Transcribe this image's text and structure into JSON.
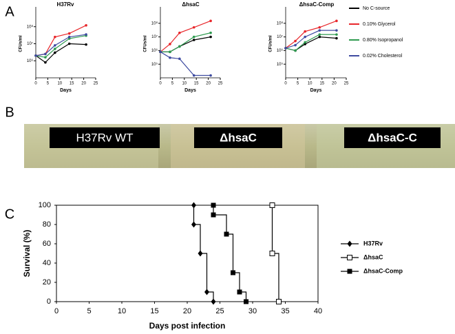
{
  "panel_labels": [
    "A",
    "B",
    "C"
  ],
  "photo": {
    "labels": [
      "H37Rv WT",
      "ΔhsaC",
      "ΔhsaC-C"
    ]
  },
  "chart_data": [
    {
      "type": "line",
      "title": "H37Rv",
      "x_label": "Days",
      "y_label": "CFUs/ml",
      "log_scale": true,
      "xlim": [
        0,
        25
      ],
      "xticks": [
        0,
        5,
        10,
        15,
        20,
        25
      ],
      "ylim": [
        100000,
        1000000000
      ],
      "yticks": [
        {
          "value": 1000000,
          "label": "10⁶"
        },
        {
          "value": 10000000,
          "label": "10⁷"
        },
        {
          "value": 100000000,
          "label": "10⁸"
        }
      ],
      "x": [
        0,
        4,
        8,
        14,
        21
      ],
      "legend": "right",
      "series": [
        {
          "name": "No C-source",
          "color": "#000000",
          "values": [
            2000000,
            800000,
            3000000,
            10000000,
            9000000
          ]
        },
        {
          "name": "0.10%  Glycerol",
          "color": "#e8262a",
          "values": [
            2000000,
            2500000,
            25000000,
            40000000,
            120000000
          ]
        },
        {
          "name": "0.80%  Isopropanol",
          "color": "#2e9a4f",
          "values": [
            2000000,
            1600000,
            5000000,
            20000000,
            30000000
          ]
        },
        {
          "name": "0.02%  Cholesterol",
          "color": "#3d4aa0",
          "values": [
            2000000,
            2500000,
            8000000,
            25000000,
            35000000
          ]
        }
      ]
    },
    {
      "type": "line",
      "title": "ΔhsaC",
      "x_label": "Days",
      "y_label": "CFUs/ml",
      "log_scale": true,
      "xlim": [
        0,
        25
      ],
      "xticks": [
        0,
        5,
        10,
        15,
        20,
        25
      ],
      "ylim": [
        10000,
        1000000000
      ],
      "yticks": [
        {
          "value": 100000,
          "label": "10⁵"
        },
        {
          "value": 1000000,
          "label": "10⁶"
        },
        {
          "value": 10000000,
          "label": "10⁷"
        },
        {
          "value": 100000000,
          "label": "10⁸"
        }
      ],
      "x": [
        0,
        4,
        8,
        14,
        21
      ],
      "series": [
        {
          "color": "#000000",
          "values": [
            800000,
            800000,
            2000000,
            6000000,
            10000000
          ]
        },
        {
          "color": "#e8262a",
          "values": [
            800000,
            3000000,
            20000000,
            50000000,
            150000000
          ]
        },
        {
          "color": "#2e9a4f",
          "values": [
            800000,
            800000,
            2000000,
            10000000,
            20000000
          ]
        },
        {
          "color": "#3d4aa0",
          "values": [
            800000,
            300000,
            250000,
            15000,
            15000
          ]
        }
      ]
    },
    {
      "type": "line",
      "title": "ΔhsaC-Comp",
      "x_label": "Days",
      "y_label": "CFUs/ml",
      "log_scale": true,
      "xlim": [
        0,
        25
      ],
      "xticks": [
        0,
        5,
        10,
        15,
        20,
        25
      ],
      "ylim": [
        10000,
        1000000000
      ],
      "yticks": [
        {
          "value": 100000,
          "label": "10⁵"
        },
        {
          "value": 1000000,
          "label": "10⁶"
        },
        {
          "value": 10000000,
          "label": "10⁷"
        },
        {
          "value": 100000000,
          "label": "10⁸"
        }
      ],
      "x": [
        0,
        4,
        8,
        14,
        21
      ],
      "series": [
        {
          "color": "#000000",
          "values": [
            1500000,
            1000000,
            3000000,
            10000000,
            8000000
          ]
        },
        {
          "color": "#e8262a",
          "values": [
            1500000,
            5000000,
            25000000,
            50000000,
            150000000
          ]
        },
        {
          "color": "#2e9a4f",
          "values": [
            1500000,
            1000000,
            4000000,
            15000000,
            15000000
          ]
        },
        {
          "color": "#3d4aa0",
          "values": [
            1500000,
            2500000,
            10000000,
            30000000,
            30000000
          ]
        }
      ]
    },
    {
      "type": "step",
      "x_label": "Days post infection",
      "y_label": "Survival (%)",
      "xlim": [
        0,
        40
      ],
      "xticks": [
        0,
        5,
        10,
        15,
        20,
        25,
        30,
        35,
        40
      ],
      "ylim": [
        0,
        100
      ],
      "yticks": [
        0,
        20,
        40,
        60,
        80,
        100
      ],
      "legend": "right",
      "series": [
        {
          "name": "H37Rv",
          "color": "#000000",
          "marker": "diamond",
          "x": [
            21,
            21,
            22,
            23,
            24
          ],
          "values": [
            100,
            80,
            50,
            10,
            0
          ]
        },
        {
          "name": "ΔhsaC",
          "color": "#000000",
          "marker": "open-square",
          "x": [
            33,
            33,
            34
          ],
          "values": [
            100,
            50,
            0
          ]
        },
        {
          "name": "ΔhsaC-Comp",
          "color": "#000000",
          "marker": "square",
          "x": [
            24,
            24,
            26,
            27,
            28,
            29
          ],
          "values": [
            100,
            90,
            70,
            30,
            10,
            0
          ]
        }
      ]
    }
  ]
}
